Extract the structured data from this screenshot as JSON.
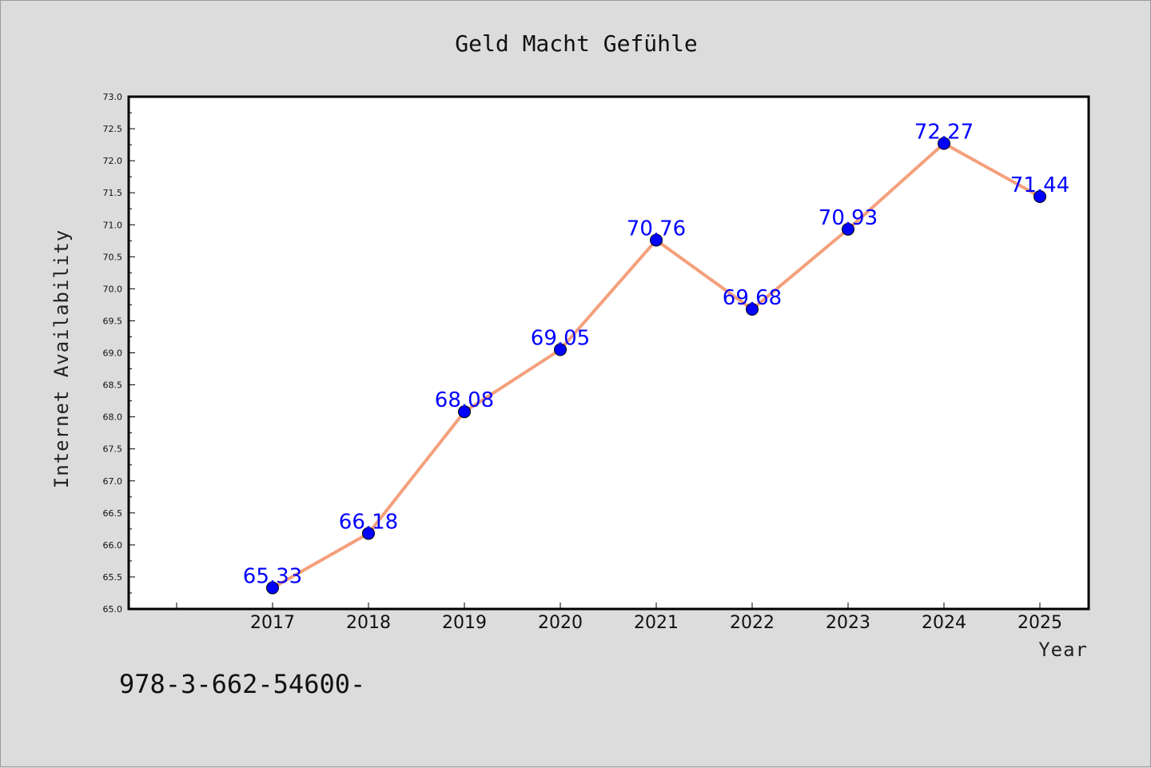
{
  "chart_data": {
    "type": "line",
    "title": "Geld Macht Gefühle",
    "xlabel": "Year",
    "ylabel": "Internet Availability",
    "categories": [
      "2017",
      "2018",
      "2019",
      "2020",
      "2021",
      "2022",
      "2023",
      "2024",
      "2025"
    ],
    "series": [
      {
        "values": [
          65.33,
          66.18,
          68.08,
          69.05,
          70.76,
          69.68,
          70.93,
          72.27,
          71.44
        ],
        "labels": [
          "65.33",
          "66.18",
          "68.08",
          "69.05",
          "70.76",
          "69.68",
          "70.93",
          "72.27",
          "71.44"
        ]
      }
    ],
    "ylim": [
      65.0,
      73.0
    ],
    "yticks": [
      "65.0",
      "65.5",
      "66.0",
      "66.5",
      "67.0",
      "67.5",
      "68.0",
      "68.5",
      "69.0",
      "69.5",
      "70.0",
      "70.5",
      "71.0",
      "71.5",
      "72.0",
      "72.5",
      "73.0"
    ],
    "grid": false,
    "legend": "none",
    "colors": {
      "line": "#f4a07c",
      "marker": "#0000ff",
      "data_label": "#0000ff",
      "plot_background": "#ffffff",
      "page_background": "#dcdcdc"
    }
  },
  "footer": {
    "text": "978-3-662-54600-"
  }
}
